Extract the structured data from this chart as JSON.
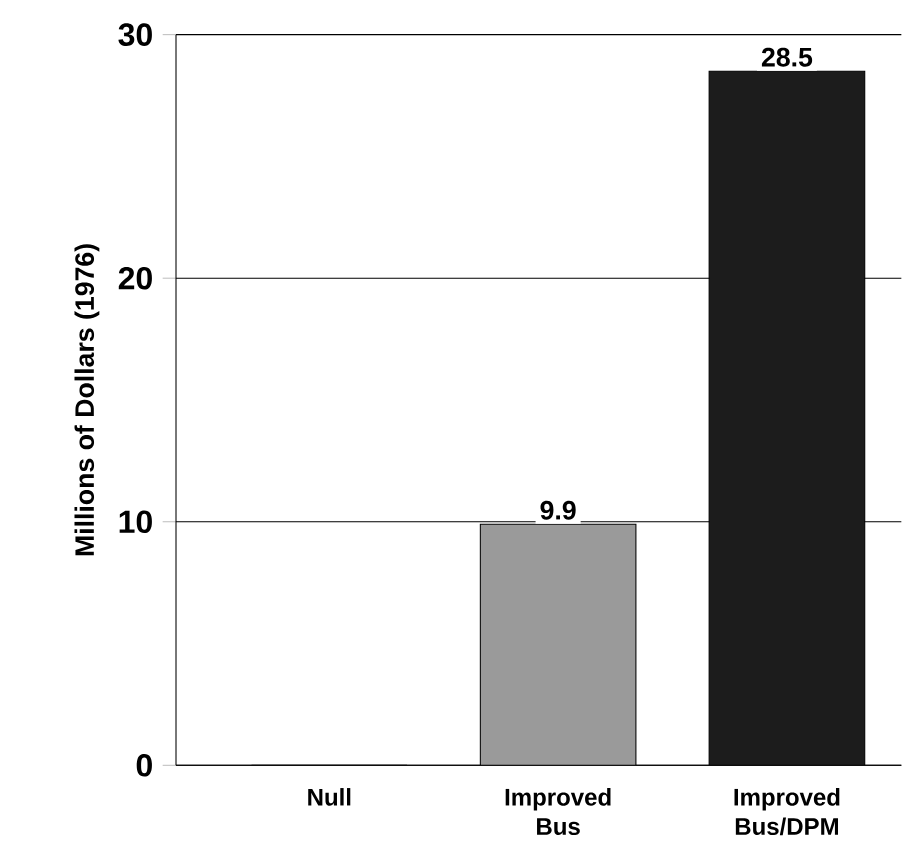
{
  "chart_data": {
    "type": "bar",
    "ylabel": "Millions of Dollars (1976)",
    "categories": [
      "Null",
      "Improved Bus",
      "Improved Bus/DPM"
    ],
    "values": [
      0,
      9.9,
      28.5
    ],
    "colors": [
      "#9a9a9a",
      "#9a9a9a",
      "#1c1c1c"
    ],
    "value_labels": [
      null,
      "9.9",
      "28.5"
    ],
    "ylim": [
      0,
      30
    ],
    "yticks": [
      0,
      10,
      20,
      30
    ],
    "grid": "y"
  }
}
